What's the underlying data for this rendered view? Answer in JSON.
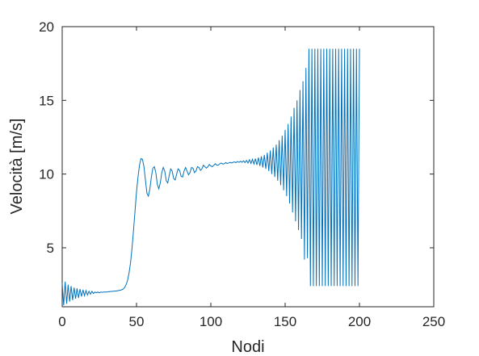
{
  "chart_data": {
    "type": "line",
    "title": "",
    "xlabel": "Nodi",
    "ylabel": "Velocità [m/s]",
    "xlim": [
      0,
      250
    ],
    "ylim": [
      1,
      20
    ],
    "xticks": [
      0,
      50,
      100,
      150,
      200,
      250
    ],
    "yticks": [
      5,
      10,
      15,
      20
    ],
    "grid": false,
    "line_color": "#0072BD",
    "series": [
      {
        "x": [
          0,
          1,
          2,
          3,
          4,
          5,
          6,
          7,
          8,
          9,
          10,
          11,
          12,
          13,
          14,
          15,
          16,
          17,
          18,
          19,
          20,
          21,
          22,
          23,
          24,
          25,
          26,
          27,
          28,
          29,
          30,
          31,
          32,
          33,
          34,
          35,
          36,
          37,
          38,
          39,
          40,
          41,
          42,
          43,
          44,
          45,
          46,
          47,
          48,
          49,
          50,
          51,
          52,
          53,
          54,
          55,
          56,
          57,
          58,
          59,
          60,
          61,
          62,
          63,
          64,
          65,
          66,
          67,
          68,
          69,
          70,
          71,
          72,
          73,
          74,
          75,
          76,
          77,
          78,
          79,
          80,
          81,
          82,
          83,
          84,
          85,
          86,
          87,
          88,
          89,
          90,
          91,
          92,
          93,
          94,
          95,
          96,
          97,
          98,
          99,
          100,
          101,
          102,
          103,
          104,
          105,
          106,
          107,
          108,
          109,
          110,
          111,
          112,
          113,
          114,
          115,
          116,
          117,
          118,
          119,
          120,
          121,
          122,
          123,
          124,
          125,
          126,
          127,
          128,
          129,
          130,
          131,
          132,
          133,
          134,
          135,
          136,
          137,
          138,
          139,
          140,
          141,
          142,
          143,
          144,
          145,
          146,
          147,
          148,
          149,
          150,
          151,
          152,
          153,
          154,
          155,
          156,
          157,
          158,
          159,
          160,
          161,
          162,
          163,
          164,
          165,
          166,
          167,
          168,
          169,
          170,
          171,
          172,
          173,
          174,
          175,
          176,
          177,
          178,
          179,
          180,
          181,
          182,
          183,
          184,
          185,
          186,
          187,
          188,
          189,
          190,
          191,
          192,
          193,
          194,
          195,
          196,
          197,
          198,
          199,
          200
        ],
        "y": [
          2.6,
          1.1,
          2.7,
          1.2,
          2.5,
          1.35,
          2.4,
          1.45,
          2.3,
          1.55,
          2.25,
          1.6,
          2.2,
          1.7,
          2.15,
          1.75,
          2.1,
          1.8,
          2.05,
          1.85,
          2.05,
          1.9,
          2.0,
          1.95,
          2.0,
          1.95,
          2.0,
          1.98,
          2.0,
          2.0,
          2.0,
          2.02,
          2.03,
          2.04,
          2.05,
          2.06,
          2.07,
          2.08,
          2.1,
          2.12,
          2.15,
          2.2,
          2.3,
          2.5,
          2.8,
          3.3,
          4.0,
          5.0,
          6.2,
          7.5,
          8.8,
          9.8,
          10.6,
          11.05,
          11.0,
          10.5,
          9.6,
          8.7,
          8.5,
          9.0,
          9.8,
          10.4,
          10.5,
          10.1,
          9.3,
          9.0,
          9.4,
          10.1,
          10.45,
          10.2,
          9.55,
          9.4,
          9.9,
          10.35,
          10.2,
          9.7,
          9.6,
          10.0,
          10.35,
          10.25,
          9.85,
          9.8,
          10.2,
          10.45,
          10.2,
          9.95,
          10.1,
          10.45,
          10.4,
          10.1,
          10.2,
          10.5,
          10.45,
          10.25,
          10.35,
          10.6,
          10.5,
          10.4,
          10.5,
          10.65,
          10.55,
          10.5,
          10.6,
          10.7,
          10.6,
          10.6,
          10.7,
          10.75,
          10.68,
          10.7,
          10.78,
          10.72,
          10.75,
          10.8,
          10.75,
          10.8,
          10.82,
          10.78,
          10.85,
          10.8,
          10.87,
          10.8,
          10.9,
          10.78,
          10.93,
          10.75,
          10.97,
          10.72,
          11.0,
          10.68,
          11.05,
          10.62,
          11.12,
          10.55,
          11.2,
          10.45,
          11.3,
          10.35,
          11.45,
          10.2,
          11.6,
          10.0,
          11.8,
          9.8,
          12.0,
          9.55,
          12.3,
          9.25,
          12.6,
          8.9,
          13.0,
          8.5,
          13.4,
          8.0,
          13.9,
          7.4,
          14.5,
          6.8,
          15.0,
          6.2,
          15.7,
          5.6,
          16.3,
          4.2,
          17.2,
          4.3,
          18.5,
          2.4,
          18.5,
          2.4,
          18.5,
          2.4,
          18.5,
          2.4,
          18.5,
          2.4,
          18.5,
          2.4,
          18.5,
          2.4,
          18.5,
          2.4,
          18.5,
          2.4,
          18.5,
          2.4,
          18.5,
          2.4,
          18.5,
          2.4,
          18.5,
          2.4,
          18.5,
          2.4,
          18.5,
          2.4,
          18.5,
          2.4,
          18.5,
          2.4,
          18.5
        ]
      }
    ]
  }
}
